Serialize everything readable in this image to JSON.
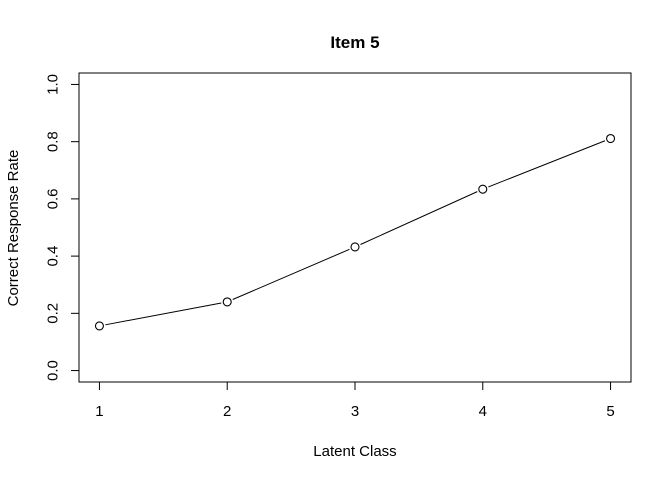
{
  "chart_data": {
    "type": "line",
    "title": "Item 5",
    "xlabel": "Latent Class",
    "ylabel": "Correct Response Rate",
    "x": [
      1,
      2,
      3,
      4,
      5
    ],
    "xticks": [
      "1",
      "2",
      "3",
      "4",
      "5"
    ],
    "yticks": [
      "0.0",
      "0.2",
      "0.4",
      "0.6",
      "0.8",
      "1.0"
    ],
    "series": [
      {
        "values": [
          0.156,
          0.24,
          0.432,
          0.634,
          0.811
        ]
      }
    ],
    "xlim": [
      0.84,
      5.16
    ],
    "ylim": [
      -0.04,
      1.04
    ],
    "grid": false,
    "marker": "open-circle",
    "line_color": "#000000"
  }
}
